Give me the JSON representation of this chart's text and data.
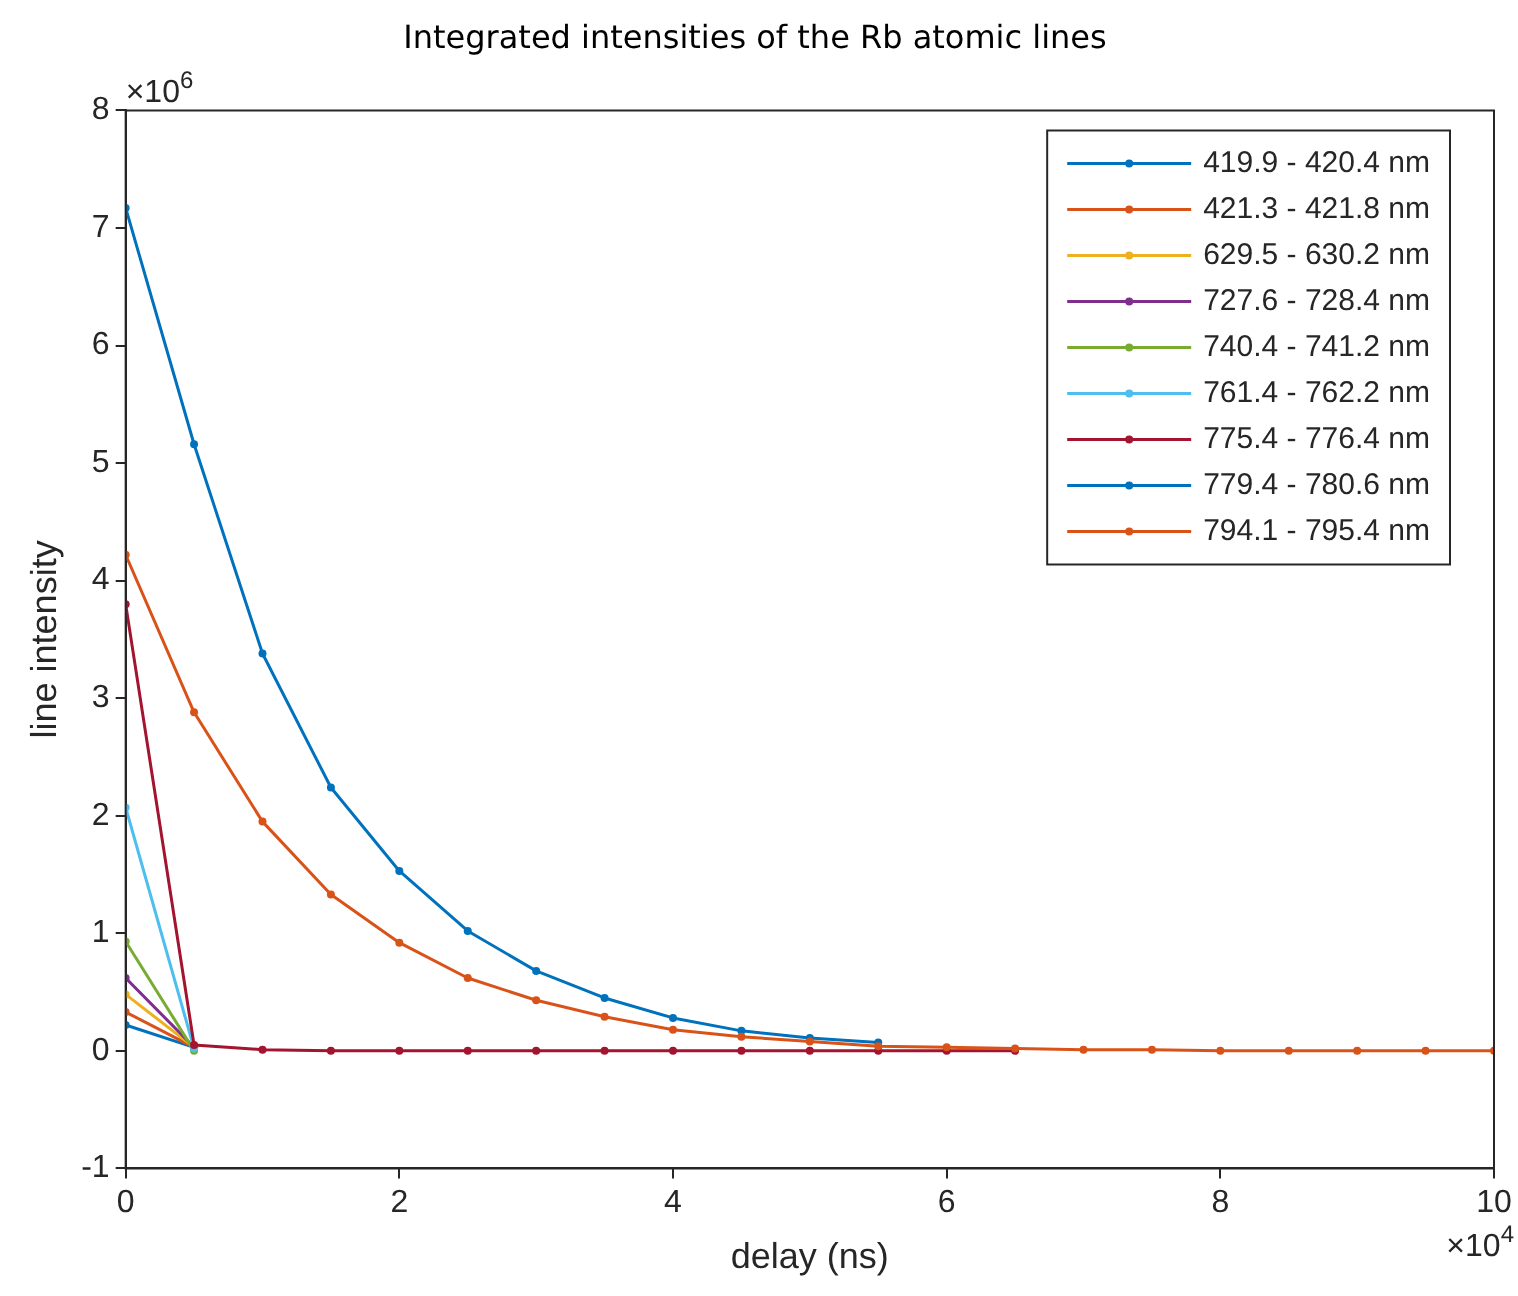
{
  "chart_data": {
    "type": "line",
    "title": "Integrated intensities of the Rb atomic lines",
    "xlabel": "delay (ns)",
    "ylabel": "line intensity",
    "annotations": [
      "×10$^{6}$",
      "×10$^{4}$"
    ],
    "x": [
      0,
      0.5,
      1,
      1.5,
      2,
      2.5,
      3,
      3.5,
      4,
      4.5,
      5,
      5.5,
      6,
      6.5,
      7,
      7.5,
      8,
      8.5,
      9,
      9.5,
      10
    ],
    "xlim": [
      0,
      10
    ],
    "xticks": [
      0,
      2,
      4,
      6,
      8,
      10
    ],
    "ylim": [
      -1,
      8
    ],
    "yticks": [
      -1,
      0,
      1,
      2,
      3,
      4,
      5,
      6,
      7,
      8
    ],
    "grid": false,
    "legend": "top right",
    "marker": "circle",
    "line_style": "solid",
    "series": [
      {
        "name": "419.9 - 420.4 nm",
        "color": "#0072bd",
        "values": [
          0.22,
          0.03,
          null,
          null,
          null,
          null,
          null,
          null,
          null,
          null,
          null,
          null,
          null,
          null,
          null,
          null,
          null,
          null,
          null,
          null,
          null
        ]
      },
      {
        "name": "421.3 - 421.8 nm",
        "color": "#d95319",
        "values": [
          0.33,
          0.03,
          null,
          null,
          null,
          null,
          null,
          null,
          null,
          null,
          null,
          null,
          null,
          null,
          null,
          null,
          null,
          null,
          null,
          null,
          null
        ]
      },
      {
        "name": "629.5 - 630.2 nm",
        "color": "#edb120",
        "values": [
          0.48,
          0.03,
          null,
          null,
          null,
          null,
          null,
          null,
          null,
          null,
          null,
          null,
          null,
          null,
          null,
          null,
          null,
          null,
          null,
          null,
          null
        ]
      },
      {
        "name": "727.6 - 728.4 nm",
        "color": "#7e2f8e",
        "values": [
          0.62,
          0.03,
          null,
          null,
          null,
          null,
          null,
          null,
          null,
          null,
          null,
          null,
          null,
          null,
          null,
          null,
          null,
          null,
          null,
          null,
          null
        ]
      },
      {
        "name": "740.4 - 741.2 nm",
        "color": "#77ac30",
        "values": [
          0.93,
          0,
          null,
          null,
          null,
          null,
          null,
          null,
          null,
          null,
          null,
          null,
          null,
          null,
          null,
          null,
          null,
          null,
          null,
          null,
          null
        ]
      },
      {
        "name": "761.4 - 762.2 nm",
        "color": "#4dbeee",
        "values": [
          2.07,
          0.02,
          null,
          null,
          null,
          null,
          null,
          null,
          null,
          null,
          null,
          null,
          null,
          null,
          null,
          null,
          null,
          null,
          null,
          null,
          null
        ]
      },
      {
        "name": "775.4 - 776.4 nm",
        "color": "#a2142f",
        "values": [
          3.8,
          0.05,
          0.01,
          0,
          0,
          0,
          0,
          0,
          0,
          0,
          0,
          0,
          0,
          0,
          null,
          null,
          null,
          null,
          null,
          null,
          null
        ]
      },
      {
        "name": "779.4 - 780.6 nm",
        "color": "#0072bd",
        "values": [
          7.17,
          5.16,
          3.38,
          2.24,
          1.53,
          1.02,
          0.68,
          0.45,
          0.28,
          0.17,
          0.11,
          0.07,
          null,
          null,
          null,
          null,
          null,
          null,
          null,
          null,
          null
        ]
      },
      {
        "name": "794.1 - 795.4 nm",
        "color": "#d95319",
        "values": [
          4.22,
          2.88,
          1.95,
          1.33,
          0.92,
          0.62,
          0.43,
          0.29,
          0.18,
          0.12,
          0.08,
          0.04,
          0.03,
          0.02,
          0.01,
          0.01,
          0,
          0,
          0,
          0,
          0
        ]
      }
    ]
  }
}
